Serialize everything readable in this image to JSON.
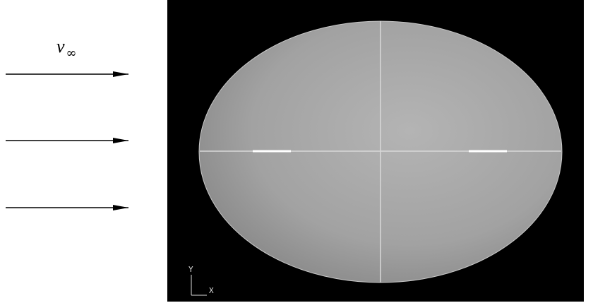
{
  "flow_label": {
    "symbol": "v",
    "subscript": "∞"
  },
  "axis_triad": {
    "y": "Y",
    "x": "X"
  }
}
